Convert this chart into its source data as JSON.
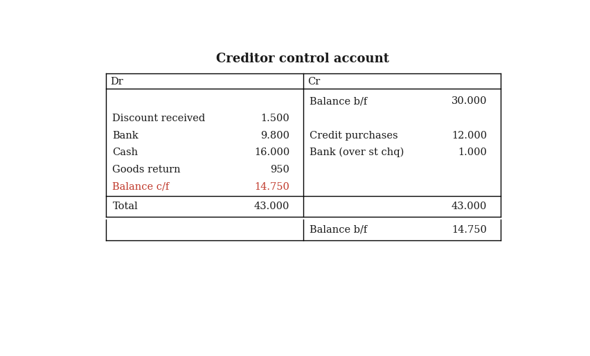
{
  "title": "Creditor control account",
  "title_fontsize": 13,
  "title_fontweight": "bold",
  "background_color": "#ffffff",
  "dr_label": "Dr",
  "cr_label": "Cr",
  "dr_rows": [
    {
      "label": "Discount received",
      "value": "1.500"
    },
    {
      "label": "Bank",
      "value": "9.800"
    },
    {
      "label": "Cash",
      "value": "16.000"
    },
    {
      "label": "Goods return",
      "value": "950"
    },
    {
      "label": "Balance c/f",
      "value": "14.750",
      "red": true
    }
  ],
  "cr_rows": [
    {
      "label": "Balance b/f",
      "value": "30.000"
    },
    {
      "label": "Credit purchases",
      "value": "12.000"
    },
    {
      "label": "Bank (over st chq)",
      "value": "1.000"
    },
    {
      "label": "",
      "value": ""
    },
    {
      "label": "",
      "value": ""
    }
  ],
  "total_dr": "43.000",
  "total_cr": "43.000",
  "bottom_cr_label": "Balance b/f",
  "bottom_cr_value": "14.750",
  "text_color": "#1a1a1a",
  "red_color": "#c0392b",
  "font_family": "serif",
  "font_size": 10.5
}
